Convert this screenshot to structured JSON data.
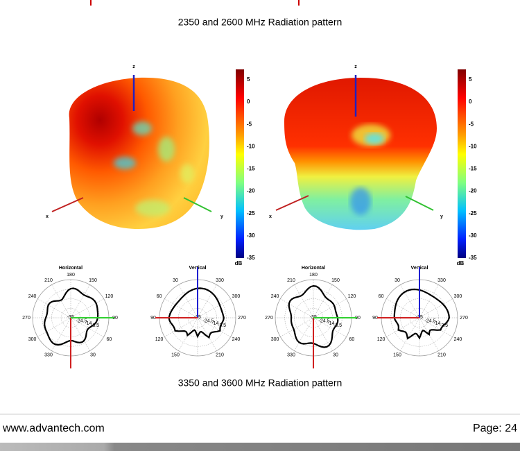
{
  "captions": [
    "2350 and 2600 MHz Radiation pattern",
    "3350 and 3600 MHz Radiation pattern"
  ],
  "radiation_3d": [
    {
      "axis_labels": {
        "x": "x",
        "y": "y",
        "z": "z"
      },
      "colorbar": {
        "ticks": [
          5,
          0,
          -5,
          -10,
          -15,
          -20,
          -25,
          -30,
          -35
        ],
        "unit": "dB"
      }
    },
    {
      "axis_labels": {
        "x": "x",
        "y": "y",
        "z": "z"
      },
      "colorbar": {
        "ticks": [
          5,
          0,
          -5,
          -10,
          -15,
          -20,
          -25,
          -30,
          -35
        ],
        "unit": "dB"
      }
    }
  ],
  "polar_plots": [
    {
      "title": "Horizontal",
      "angle_labels": [
        180,
        150,
        120,
        90,
        60,
        30,
        330,
        300,
        270,
        240,
        210
      ],
      "ring_labels": [
        -35,
        -24.5,
        -14,
        -3.5
      ]
    },
    {
      "title": "Vertical",
      "angle_labels": [
        330,
        300,
        270,
        240,
        210,
        150,
        120,
        90,
        60,
        30
      ],
      "ring_labels": [
        -35,
        -24.5,
        -14,
        -3.5
      ]
    },
    {
      "title": "Horizontal",
      "angle_labels": [
        180,
        150,
        120,
        90,
        60,
        30,
        330,
        300,
        270,
        240,
        210
      ],
      "ring_labels": [
        -35,
        -24.5,
        -14,
        -3.5
      ]
    },
    {
      "title": "Vertical",
      "angle_labels": [
        330,
        300,
        270,
        240,
        210,
        150,
        120,
        90,
        60,
        30
      ],
      "ring_labels": [
        -35,
        -24.5,
        -14,
        -3.5
      ]
    }
  ],
  "footer": {
    "url": "www.advantech.com",
    "page": "Page: 24"
  }
}
